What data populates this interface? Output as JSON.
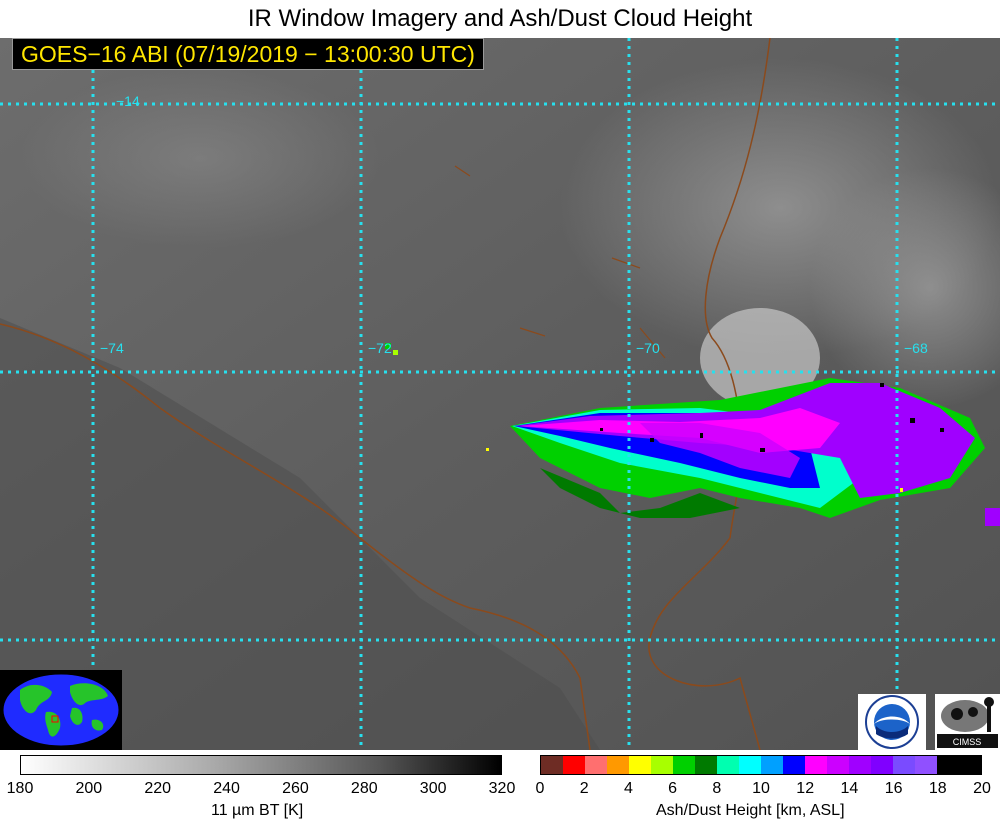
{
  "title": "IR Window Imagery and Ash/Dust Cloud Height",
  "banner": "GOES−16 ABI (07/19/2019 − 13:00:30 UTC)",
  "grid": {
    "lat_labels": [
      "−14"
    ],
    "lon_labels": [
      "−74",
      "−72",
      "−70",
      "−68"
    ]
  },
  "colorbar_bt": {
    "label": "11 µm BT [K]",
    "ticks": [
      "180",
      "200",
      "220",
      "240",
      "260",
      "280",
      "300",
      "320"
    ],
    "range": [
      180,
      320
    ]
  },
  "colorbar_ash": {
    "label": "Ash/Dust Height [km, ASL]",
    "ticks": [
      "0",
      "2",
      "4",
      "6",
      "8",
      "10",
      "12",
      "14",
      "16",
      "18",
      "20"
    ],
    "range": [
      0,
      20
    ],
    "colors": [
      "#6e2c24",
      "#ff0000",
      "#ff6f6f",
      "#ff9900",
      "#ffff00",
      "#a8ff00",
      "#00d000",
      "#007a00",
      "#00ffb0",
      "#00ffff",
      "#00a0ff",
      "#0000ff",
      "#ff00ff",
      "#cc00ff",
      "#a000ff",
      "#8000ff",
      "#7a4bff",
      "#9050ff",
      "#000000",
      "#000000"
    ]
  },
  "logos": {
    "noaa": "NOAA",
    "cimss": "CIMSS"
  },
  "colors": {
    "grid": "#27e0ee",
    "banner_text": "#ffe600",
    "border": "#8b4a1c"
  }
}
